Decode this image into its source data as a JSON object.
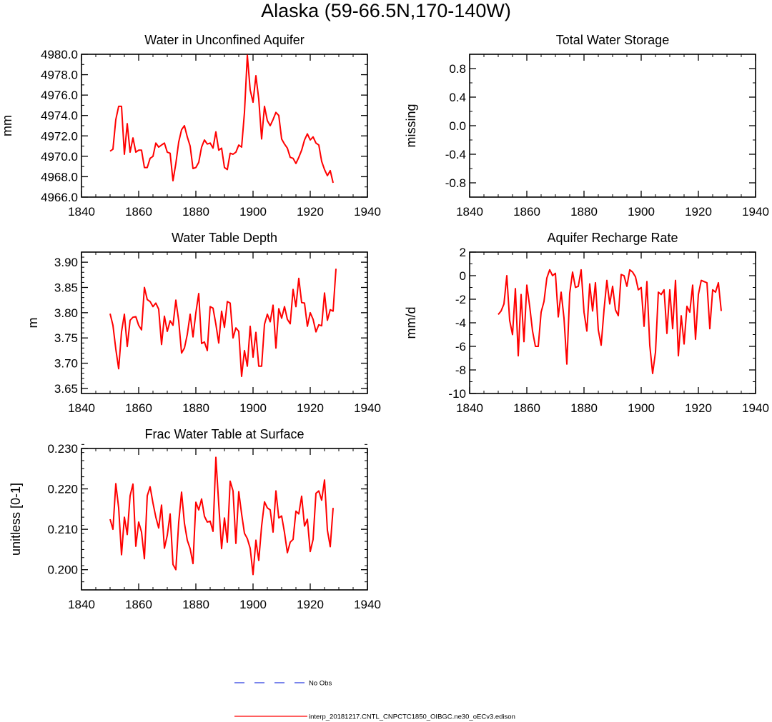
{
  "figure_title": "Alaska (59-66.5N,170-140W)",
  "legend": {
    "entries": [
      {
        "label": "No Obs",
        "color": "#2b3ce0",
        "dash": "dashed"
      },
      {
        "label": "interp_20181217.CNTL_CNPCTC1850_OIBGC.ne30_oECv3.edison",
        "color": "#ff0000",
        "dash": "solid"
      }
    ]
  },
  "chart_data": [
    {
      "id": "p1",
      "type": "line",
      "title": "Water in Unconfined Aquifer",
      "xlabel": "",
      "ylabel": "mm",
      "xlim": [
        1840,
        1940
      ],
      "ylim": [
        4966,
        4980
      ],
      "xticks": [
        1840,
        1860,
        1880,
        1900,
        1920,
        1940
      ],
      "xticklabels": [
        "1840",
        "1860",
        "1880",
        "1900",
        "1920",
        "1940"
      ],
      "yticks": [
        4966,
        4968,
        4970,
        4972,
        4974,
        4976,
        4978,
        4980
      ],
      "yticklabels": [
        "4966.0",
        "4968.0",
        "4970.0",
        "4972.0",
        "4974.0",
        "4976.0",
        "4978.0",
        "4980.0"
      ],
      "yminor": 1,
      "series": [
        {
          "name": "interp_20181217.CNTL_CNPCTC1850_OIBGC.ne30_oECv3.edison",
          "color": "#ff0000",
          "x_start": 1850,
          "x_step": 1,
          "values": [
            4970.5,
            4970.7,
            4973.6,
            4974.9,
            4974.9,
            4970.2,
            4973.2,
            4970.4,
            4971.8,
            4970.4,
            4970.6,
            4970.6,
            4968.9,
            4968.9,
            4969.8,
            4970.0,
            4971.3,
            4970.9,
            4971.1,
            4971.3,
            4970.4,
            4970.3,
            4967.6,
            4969.3,
            4971.4,
            4972.6,
            4973.0,
            4971.9,
            4971.0,
            4968.8,
            4968.9,
            4969.4,
            4970.9,
            4971.6,
            4971.2,
            4971.3,
            4970.8,
            4972.4,
            4970.6,
            4970.8,
            4968.9,
            4968.7,
            4970.3,
            4970.2,
            4970.4,
            4971.1,
            4970.9,
            4974.3,
            4979.9,
            4976.5,
            4975.3,
            4977.9,
            4975.6,
            4971.7,
            4974.9,
            4973.5,
            4973.0,
            4973.6,
            4974.3,
            4974.0,
            4971.7,
            4971.2,
            4970.8,
            4969.9,
            4969.8,
            4969.3,
            4969.9,
            4970.6,
            4971.6,
            4972.2,
            4971.6,
            4971.9,
            4971.3,
            4971.1,
            4969.5,
            4968.7,
            4968.1,
            4968.6,
            4967.4
          ]
        }
      ]
    },
    {
      "id": "p2",
      "type": "line",
      "title": "Total Water Storage",
      "xlabel": "",
      "ylabel": "missing",
      "xlim": [
        1840,
        1940
      ],
      "ylim": [
        -1,
        1
      ],
      "xticks": [
        1840,
        1860,
        1880,
        1900,
        1920,
        1940
      ],
      "xticklabels": [
        "1840",
        "1860",
        "1880",
        "1900",
        "1920",
        "1940"
      ],
      "yticks": [
        -0.8,
        -0.4,
        0.0,
        0.4,
        0.8
      ],
      "yticklabels": [
        "-0.8",
        "-0.4",
        "0.0",
        "0.4",
        "0.8"
      ],
      "yminor": 0.2,
      "series": []
    },
    {
      "id": "p3",
      "type": "line",
      "title": "Water Table Depth",
      "xlabel": "",
      "ylabel": "m",
      "xlim": [
        1840,
        1940
      ],
      "ylim": [
        3.64,
        3.92
      ],
      "xticks": [
        1840,
        1860,
        1880,
        1900,
        1920,
        1940
      ],
      "xticklabels": [
        "1840",
        "1860",
        "1880",
        "1900",
        "1920",
        "1940"
      ],
      "yticks": [
        3.65,
        3.7,
        3.75,
        3.8,
        3.85,
        3.9
      ],
      "yticklabels": [
        "3.65",
        "3.70",
        "3.75",
        "3.80",
        "3.85",
        "3.90"
      ],
      "yminor": 0.01,
      "series": [
        {
          "name": "interp_20181217.CNTL_CNPCTC1850_OIBGC.ne30_oECv3.edison",
          "color": "#ff0000",
          "x_start": 1850,
          "x_step": 1,
          "values": [
            3.798,
            3.775,
            3.728,
            3.689,
            3.762,
            3.797,
            3.733,
            3.785,
            3.791,
            3.792,
            3.775,
            3.766,
            3.85,
            3.826,
            3.822,
            3.812,
            3.819,
            3.807,
            3.737,
            3.793,
            3.763,
            3.784,
            3.775,
            3.825,
            3.784,
            3.72,
            3.73,
            3.757,
            3.797,
            3.752,
            3.8,
            3.838,
            3.739,
            3.742,
            3.725,
            3.812,
            3.809,
            3.777,
            3.74,
            3.803,
            3.771,
            3.822,
            3.819,
            3.75,
            3.77,
            3.763,
            3.674,
            3.725,
            3.694,
            3.773,
            3.712,
            3.761,
            3.694,
            3.694,
            3.777,
            3.797,
            3.782,
            3.815,
            3.73,
            3.808,
            3.789,
            3.812,
            3.787,
            3.778,
            3.846,
            3.812,
            3.868,
            3.82,
            3.819,
            3.773,
            3.8,
            3.787,
            3.762,
            3.776,
            3.774,
            3.839,
            3.785,
            3.806,
            3.803,
            3.887
          ]
        }
      ]
    },
    {
      "id": "p4",
      "type": "line",
      "title": "Aquifer Recharge Rate",
      "xlabel": "",
      "ylabel": "mm/d",
      "xlim": [
        1840,
        1940
      ],
      "ylim": [
        -10,
        2
      ],
      "xticks": [
        1840,
        1860,
        1880,
        1900,
        1920,
        1940
      ],
      "xticklabels": [
        "1840",
        "1860",
        "1880",
        "1900",
        "1920",
        "1940"
      ],
      "yticks": [
        -10,
        -8,
        -6,
        -4,
        -2,
        0,
        2
      ],
      "yticklabels": [
        "-10",
        "-8",
        "-6",
        "-4",
        "-2",
        "0",
        "2"
      ],
      "yminor": 1,
      "series": [
        {
          "name": "interp_20181217.CNTL_CNPCTC1850_OIBGC.ne30_oECv3.edison",
          "color": "#ff0000",
          "x_start": 1850,
          "x_step": 1,
          "values": [
            -3.3,
            -3.0,
            -2.4,
            0.0,
            -3.8,
            -5.0,
            -1.1,
            -6.8,
            -1.6,
            -5.6,
            -0.8,
            -2.6,
            -4.7,
            -6.0,
            -6.0,
            -3.1,
            -2.2,
            -0.2,
            0.5,
            0.0,
            0.2,
            -3.5,
            -1.4,
            -3.6,
            -7.5,
            -1.5,
            0.3,
            -1.0,
            -0.9,
            0.5,
            -3.1,
            -4.7,
            -0.7,
            -3.0,
            -0.6,
            -4.6,
            -5.9,
            -2.9,
            -0.4,
            -2.4,
            -0.9,
            -2.9,
            -3.4,
            0.1,
            0.0,
            -0.9,
            0.5,
            0.3,
            -0.1,
            -1.2,
            -1.0,
            -4.3,
            -0.5,
            -5.9,
            -8.3,
            -6.5,
            -1.4,
            -1.6,
            -1.2,
            -4.9,
            -1.2,
            -4.5,
            -0.4,
            -6.8,
            -3.4,
            -5.8,
            -2.6,
            -3.1,
            -0.8,
            -5.4,
            -1.6,
            -0.4,
            -0.5,
            -0.6,
            -4.5,
            -1.2,
            -1.4,
            -0.6,
            -3.0
          ]
        }
      ]
    },
    {
      "id": "p5",
      "type": "line",
      "title": "Frac Water Table at Surface",
      "xlabel": "",
      "ylabel": "unitless [0-1]",
      "xlim": [
        1840,
        1940
      ],
      "ylim": [
        0.195,
        0.23
      ],
      "xticks": [
        1840,
        1860,
        1880,
        1900,
        1920,
        1940
      ],
      "xticklabels": [
        "1840",
        "1860",
        "1880",
        "1900",
        "1920",
        "1940"
      ],
      "yticks": [
        0.2,
        0.21,
        0.22,
        0.23
      ],
      "yticklabels": [
        "0.200",
        "0.210",
        "0.220",
        "0.230"
      ],
      "yminor": 0.002,
      "series": [
        {
          "name": "interp_20181217.CNTL_CNPCTC1850_OIBGC.ne30_oECv3.edison",
          "color": "#ff0000",
          "x_start": 1850,
          "x_step": 1,
          "values": [
            0.2125,
            0.21,
            0.2213,
            0.2153,
            0.2037,
            0.213,
            0.2087,
            0.2183,
            0.2212,
            0.2058,
            0.2118,
            0.2093,
            0.2027,
            0.2183,
            0.2205,
            0.2165,
            0.213,
            0.2103,
            0.216,
            0.2053,
            0.2085,
            0.2138,
            0.2013,
            0.2,
            0.2117,
            0.2192,
            0.2115,
            0.2073,
            0.2052,
            0.2015,
            0.2167,
            0.2148,
            0.2175,
            0.2132,
            0.2118,
            0.212,
            0.2095,
            0.2278,
            0.2162,
            0.2052,
            0.2128,
            0.2068,
            0.2219,
            0.2195,
            0.2065,
            0.2193,
            0.2138,
            0.209,
            0.2077,
            0.2053,
            0.1988,
            0.2073,
            0.2023,
            0.2108,
            0.2168,
            0.2153,
            0.2148,
            0.2093,
            0.2195,
            0.2128,
            0.2133,
            0.2092,
            0.2042,
            0.2068,
            0.2075,
            0.2145,
            0.2138,
            0.2182,
            0.2108,
            0.2125,
            0.2045,
            0.2075,
            0.2189,
            0.2195,
            0.2172,
            0.2222,
            0.2098,
            0.2057,
            0.2153
          ]
        }
      ]
    }
  ]
}
